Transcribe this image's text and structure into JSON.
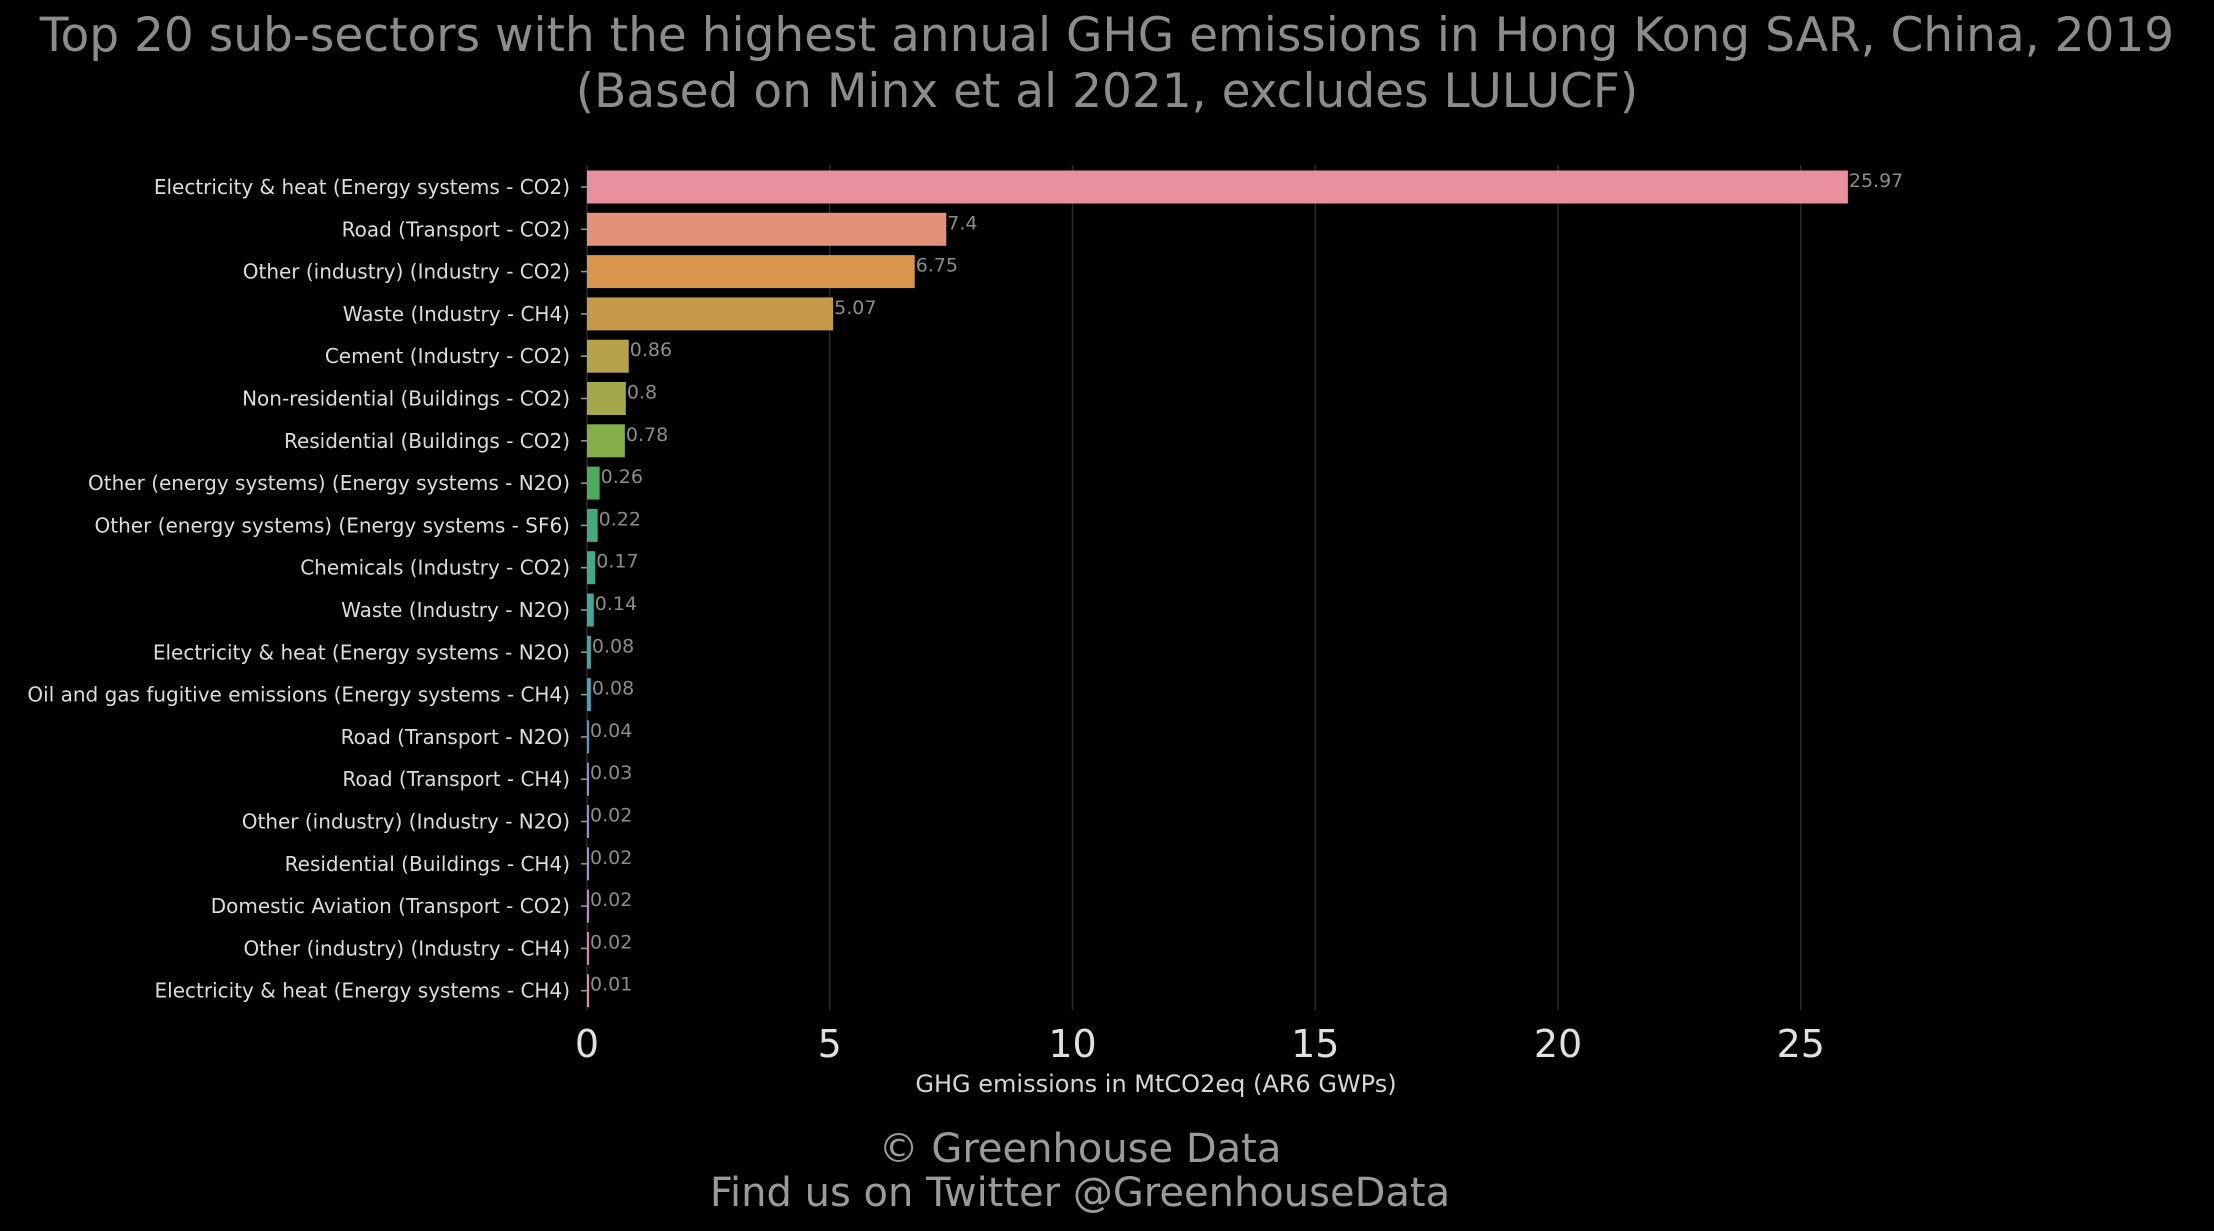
{
  "title_lines": [
    "Top 20 sub-sectors with the highest annual GHG emissions in Hong Kong SAR, China, 2019",
    "(Based on Minx et al 2021, excludes LULUCF)"
  ],
  "credit_lines": [
    "© Greenhouse Data",
    "Find us on Twitter @GreenhouseData"
  ],
  "chart_data": {
    "type": "bar",
    "orientation": "horizontal",
    "xlabel": "GHG emissions in MtCO2eq (AR6 GWPs)",
    "ylabel": "",
    "xlim": [
      0,
      29
    ],
    "x_ticks": [
      0,
      5,
      10,
      15,
      20,
      25
    ],
    "grid": "vertical",
    "categories": [
      "Electricity & heat (Energy systems - CO2)",
      "Road (Transport - CO2)",
      "Other (industry) (Industry - CO2)",
      "Waste (Industry - CH4)",
      "Cement (Industry - CO2)",
      "Non-residential (Buildings - CO2)",
      "Residential (Buildings - CO2)",
      "Other (energy systems) (Energy systems - N2O)",
      "Other (energy systems) (Energy systems - SF6)",
      "Chemicals (Industry - CO2)",
      "Waste (Industry - N2O)",
      "Electricity & heat (Energy systems - N2O)",
      "Oil and gas fugitive emissions (Energy systems - CH4)",
      "Road (Transport - N2O)",
      "Road (Transport - CH4)",
      "Other (industry) (Industry - N2O)",
      "Residential (Buildings - CH4)",
      "Domestic Aviation (Transport - CO2)",
      "Other (industry) (Industry - CH4)",
      "Electricity & heat (Energy systems - CH4)"
    ],
    "values": [
      25.97,
      7.4,
      6.75,
      5.07,
      0.86,
      0.8,
      0.78,
      0.26,
      0.22,
      0.17,
      0.14,
      0.08,
      0.08,
      0.04,
      0.03,
      0.02,
      0.02,
      0.02,
      0.02,
      0.01
    ],
    "value_labels": [
      "25.97",
      "7.4",
      "6.75",
      "5.07",
      "0.86",
      "0.8",
      "0.78",
      "0.26",
      "0.22",
      "0.17",
      "0.14",
      "0.08",
      "0.08",
      "0.04",
      "0.03",
      "0.02",
      "0.02",
      "0.02",
      "0.02",
      "0.01"
    ],
    "colors": [
      "#e8909e",
      "#e4917a",
      "#d9944d",
      "#c49a4a",
      "#b5a24a",
      "#a2a84b",
      "#84ad4c",
      "#4fab5a",
      "#46aa78",
      "#45a98c",
      "#43a79b",
      "#44a5a8",
      "#45a3b6",
      "#4c9fcb",
      "#7f96d6",
      "#9a8bd8",
      "#b384d7",
      "#c77fcf",
      "#d67fbe",
      "#e08aad"
    ],
    "background": "#000000",
    "text_color": "#8c8c8c"
  }
}
